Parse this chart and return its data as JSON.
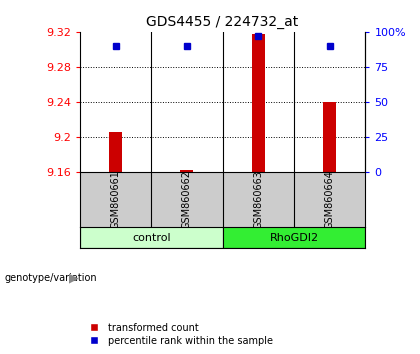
{
  "title": "GDS4455 / 224732_at",
  "samples": [
    "GSM860661",
    "GSM860662",
    "GSM860663",
    "GSM860664"
  ],
  "transformed_counts": [
    9.205,
    9.162,
    9.318,
    9.24
  ],
  "percentile_ranks": [
    90,
    90,
    97,
    90
  ],
  "ylim_left": [
    9.16,
    9.32
  ],
  "yticks_left": [
    9.16,
    9.2,
    9.24,
    9.28,
    9.32
  ],
  "yticks_right": [
    0,
    25,
    50,
    75,
    100
  ],
  "ylim_right": [
    0,
    100
  ],
  "bar_color": "#CC0000",
  "dot_color": "#0000CC",
  "bar_bottom": 9.16,
  "control_color_light": "#CCFFCC",
  "rhogdi2_color_bright": "#33EE33",
  "sample_box_color": "#CCCCCC",
  "legend_red": "transformed count",
  "legend_blue": "percentile rank within the sample",
  "group_label_text": "genotype/variation"
}
